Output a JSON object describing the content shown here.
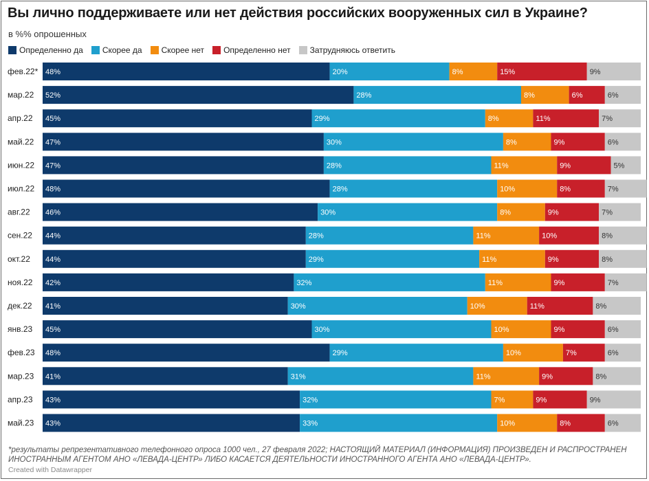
{
  "title": "Вы лично поддерживаете или нет действия российских вооруженных сил в Украине?",
  "subtitle": "в %% опрошенных",
  "legend": [
    {
      "label": "Определенно да",
      "color": "#0e3a6b"
    },
    {
      "label": "Скорее да",
      "color": "#1f9fcd"
    },
    {
      "label": "Скорее нет",
      "color": "#f28c0f"
    },
    {
      "label": "Определенно нет",
      "color": "#c8202a"
    },
    {
      "label": "Затрудняюсь ответить",
      "color": "#c7c7c7"
    }
  ],
  "chart_data": {
    "type": "bar",
    "orientation": "horizontal",
    "stacked": true,
    "value_format": "{v}%",
    "categories": [
      "фев.22*",
      "мар.22",
      "апр.22",
      "май.22",
      "июн.22",
      "июл.22",
      "авг.22",
      "сен.22",
      "окт.22",
      "ноя.22",
      "дек.22",
      "янв.23",
      "фев.23",
      "мар.23",
      "апр.23",
      "май.23"
    ],
    "series": [
      {
        "name": "Определенно да",
        "color": "#0e3a6b",
        "values": [
          48,
          52,
          45,
          47,
          47,
          48,
          46,
          44,
          44,
          42,
          41,
          45,
          48,
          41,
          43,
          43
        ]
      },
      {
        "name": "Скорее да",
        "color": "#1f9fcd",
        "values": [
          20,
          28,
          29,
          30,
          28,
          28,
          30,
          28,
          29,
          32,
          30,
          30,
          29,
          31,
          32,
          33
        ]
      },
      {
        "name": "Скорее нет",
        "color": "#f28c0f",
        "values": [
          8,
          8,
          8,
          8,
          11,
          10,
          8,
          11,
          11,
          11,
          10,
          10,
          10,
          11,
          7,
          10
        ]
      },
      {
        "name": "Определенно нет",
        "color": "#c8202a",
        "values": [
          15,
          6,
          11,
          9,
          9,
          8,
          9,
          10,
          9,
          9,
          11,
          9,
          7,
          9,
          9,
          8
        ]
      },
      {
        "name": "Затрудняюсь ответить",
        "color": "#c7c7c7",
        "values": [
          9,
          6,
          7,
          6,
          5,
          7,
          7,
          8,
          8,
          7,
          8,
          6,
          6,
          8,
          9,
          6
        ]
      }
    ],
    "xlim": [
      0,
      100
    ],
    "legend_position": "top-left",
    "grid": false
  },
  "footnote": "*результаты репрезентативного телефонного опроса 1000 чел., 27 февраля 2022; НАСТОЯЩИЙ МАТЕРИАЛ (ИНФОРМАЦИЯ) ПРОИЗВЕДЕН И РАСПРОСТРАНЕН ИНОСТРАННЫМ АГЕНТОМ АНО «ЛЕВАДА-ЦЕНТР» ЛИБО КАСАЕТСЯ ДЕЯТЕЛЬНОСТИ ИНОСТРАННОГО АГЕНТА АНО «ЛЕВАДА-ЦЕНТР».",
  "credit": "Created with Datawrapper"
}
